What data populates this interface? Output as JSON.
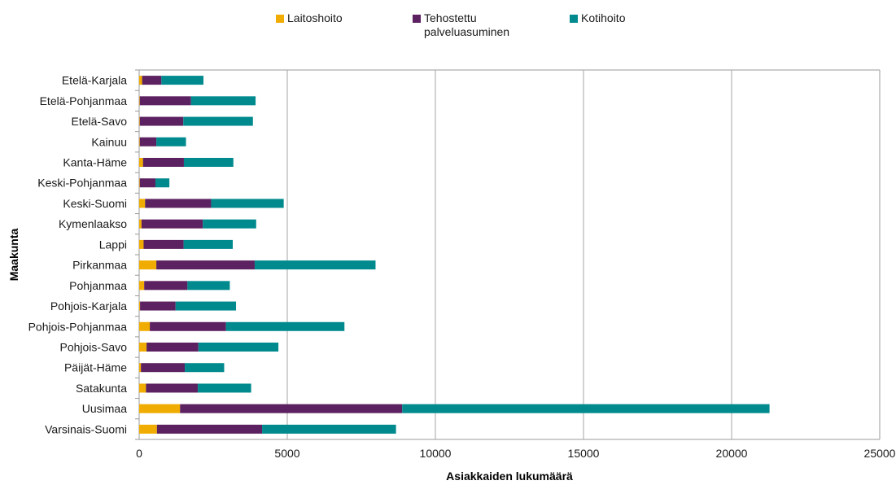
{
  "chart_data": {
    "type": "bar",
    "orientation": "horizontal",
    "stacked": true,
    "title": "",
    "xlabel": "Asiakkaiden lukumäärä",
    "ylabel": "Maakunta",
    "xlim": [
      0,
      25000
    ],
    "xticks": [
      "0",
      "5000",
      "10000",
      "15000",
      "20000",
      "25000"
    ],
    "grid": "vertical",
    "legend_position": "top",
    "categories": [
      "Etelä-Karjala",
      "Etelä-Pohjanmaa",
      "Etelä-Savo",
      "Kainuu",
      "Kanta-Häme",
      "Keski-Pohjanmaa",
      "Keski-Suomi",
      "Kymenlaakso",
      "Lappi",
      "Pirkanmaa",
      "Pohjanmaa",
      "Pohjois-Karjala",
      "Pohjois-Pohjanmaa",
      "Pohjois-Savo",
      "Päijät-Häme",
      "Satakunta",
      "Uusimaa",
      "Varsinais-Suomi"
    ],
    "series": [
      {
        "name": "Laitoshoito",
        "color": "#f0ac00",
        "values": [
          100,
          20,
          20,
          20,
          130,
          20,
          200,
          80,
          150,
          580,
          170,
          30,
          360,
          250,
          60,
          230,
          1380,
          600
        ]
      },
      {
        "name": "Tehostettu palveluasuminen",
        "color": "#5c2160",
        "values": [
          650,
          1730,
          1470,
          560,
          1380,
          530,
          2230,
          2070,
          1350,
          3320,
          1460,
          1200,
          2570,
          1750,
          1480,
          1750,
          7500,
          3550
        ]
      },
      {
        "name": "Kotihoito",
        "color": "#008a8e",
        "values": [
          1420,
          2180,
          2350,
          1000,
          1670,
          470,
          2450,
          1800,
          1660,
          4080,
          1430,
          2040,
          4000,
          2700,
          1330,
          1800,
          12400,
          4520
        ]
      }
    ]
  }
}
